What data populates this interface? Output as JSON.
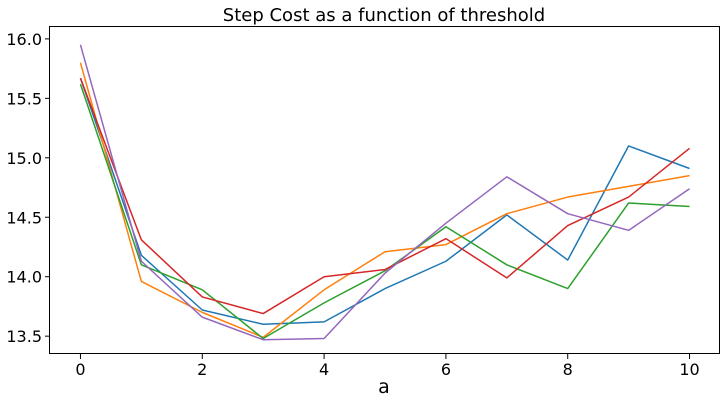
{
  "chart_data": {
    "type": "line",
    "title": "Step Cost as a function of threshold",
    "xlabel": "a",
    "ylabel": "",
    "x": [
      0,
      1,
      2,
      3,
      4,
      5,
      6,
      7,
      8,
      9,
      10
    ],
    "xlim": [
      -0.5,
      10.5
    ],
    "ylim": [
      13.35,
      16.1
    ],
    "xticks": [
      "0",
      "2",
      "4",
      "6",
      "8",
      "10"
    ],
    "yticks": [
      "13.5",
      "14.0",
      "14.5",
      "15.0",
      "15.5",
      "16.0"
    ],
    "grid": false,
    "legend": "none",
    "series": [
      {
        "color": "#1f77b4",
        "values": [
          15.67,
          14.18,
          13.72,
          13.6,
          13.62,
          13.9,
          14.13,
          14.52,
          14.14,
          15.1,
          14.91
        ]
      },
      {
        "color": "#ff7f0e",
        "values": [
          15.8,
          13.96,
          13.7,
          13.49,
          13.89,
          14.21,
          14.27,
          14.53,
          14.67,
          14.76,
          14.85
        ]
      },
      {
        "color": "#2ca02c",
        "values": [
          15.62,
          14.1,
          13.89,
          13.48,
          13.78,
          14.05,
          14.42,
          14.1,
          13.9,
          14.62,
          14.59
        ]
      },
      {
        "color": "#d62728",
        "values": [
          15.67,
          14.31,
          13.83,
          13.69,
          14.0,
          14.06,
          14.32,
          13.99,
          14.43,
          14.67,
          15.08
        ]
      },
      {
        "color": "#9467bd",
        "values": [
          15.95,
          14.13,
          13.66,
          13.47,
          13.48,
          14.03,
          14.45,
          14.84,
          14.53,
          14.39,
          14.74
        ]
      }
    ]
  }
}
